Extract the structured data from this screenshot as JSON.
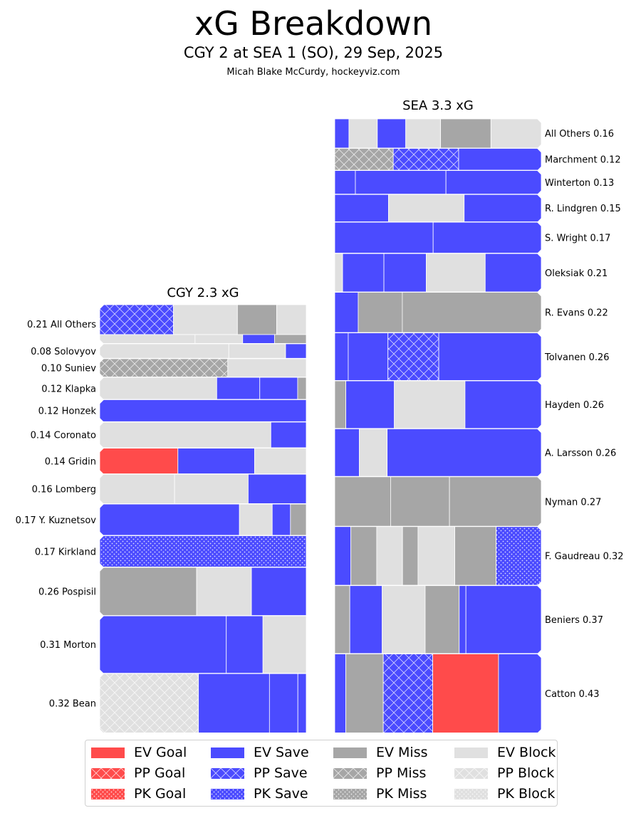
{
  "header": {
    "title": "xG Breakdown",
    "subtitle": "CGY 2 at SEA 1 (SO), 29 Sep, 2025",
    "credit": "Micah Blake McCurdy, hockeyviz.com"
  },
  "colors": {
    "goal": "#ff4b4b",
    "save": "#4b4bff",
    "miss": "#a6a6a6",
    "block": "#e0e0e0",
    "bg": "#ffffff"
  },
  "legend": [
    {
      "label": "EV Goal",
      "type": "goal",
      "state": "EV"
    },
    {
      "label": "PP Goal",
      "type": "goal",
      "state": "PP"
    },
    {
      "label": "PK Goal",
      "type": "goal",
      "state": "PK"
    },
    {
      "label": "EV Save",
      "type": "save",
      "state": "EV"
    },
    {
      "label": "PP Save",
      "type": "save",
      "state": "PP"
    },
    {
      "label": "PK Save",
      "type": "save",
      "state": "PK"
    },
    {
      "label": "EV Miss",
      "type": "miss",
      "state": "EV"
    },
    {
      "label": "PP Miss",
      "type": "miss",
      "state": "PP"
    },
    {
      "label": "PK Miss",
      "type": "miss",
      "state": "PK"
    },
    {
      "label": "EV Block",
      "type": "block",
      "state": "EV"
    },
    {
      "label": "PP Block",
      "type": "block",
      "state": "PP"
    },
    {
      "label": "PK Block",
      "type": "block",
      "state": "PK"
    }
  ],
  "chart_data": {
    "type": "treemap",
    "title": "xG Breakdown",
    "teams": [
      {
        "name": "CGY 2.3 xG",
        "team": "CGY",
        "total_xg": 2.3,
        "label_side": "left",
        "players": [
          {
            "label": "0.21 All Others",
            "name": "All Others",
            "xg": 0.21,
            "rows": [
              [
                [
                  0.075,
                  "save",
                  "PP"
                ],
                [
                  0.065,
                  "block",
                  "EV"
                ],
                [
                  0.04,
                  "miss",
                  "EV"
                ],
                [
                  0.03,
                  "block",
                  "EV"
                ]
              ],
              [
                [
                  0.03,
                  "block",
                  "EV"
                ],
                [
                  0.015,
                  "block",
                  "EV"
                ],
                [
                  0.01,
                  "save",
                  "EV"
                ],
                [
                  0.01,
                  "miss",
                  "EV"
                ]
              ]
            ]
          },
          {
            "label": "0.08 Solovyov",
            "name": "Solovyov",
            "xg": 0.08,
            "rows": [
              [
                [
                  0.05,
                  "block",
                  "EV"
                ],
                [
                  0.022,
                  "block",
                  "EV"
                ],
                [
                  0.008,
                  "save",
                  "EV"
                ]
              ]
            ]
          },
          {
            "label": "0.10 Suniev",
            "name": "Suniev",
            "xg": 0.1,
            "rows": [
              [
                [
                  0.062,
                  "miss",
                  "PP"
                ],
                [
                  0.038,
                  "block",
                  "EV"
                ]
              ]
            ]
          },
          {
            "label": "0.12 Klapka",
            "name": "Klapka",
            "xg": 0.12,
            "rows": [
              [
                [
                  0.068,
                  "block",
                  "EV"
                ],
                [
                  0.025,
                  "save",
                  "EV"
                ],
                [
                  0.022,
                  "save",
                  "EV"
                ],
                [
                  0.005,
                  "miss",
                  "EV"
                ]
              ]
            ]
          },
          {
            "label": "0.12 Honzek",
            "name": "Honzek",
            "xg": 0.12,
            "rows": [
              [
                [
                  0.12,
                  "save",
                  "EV"
                ]
              ]
            ]
          },
          {
            "label": "0.14 Coronato",
            "name": "Coronato",
            "xg": 0.14,
            "rows": [
              [
                [
                  0.116,
                  "block",
                  "EV"
                ],
                [
                  0.024,
                  "save",
                  "EV"
                ]
              ]
            ]
          },
          {
            "label": "0.14 Gridin",
            "name": "Gridin",
            "xg": 0.14,
            "rows": [
              [
                [
                  0.053,
                  "goal",
                  "EV"
                ],
                [
                  0.052,
                  "save",
                  "EV"
                ],
                [
                  0.035,
                  "block",
                  "EV"
                ]
              ]
            ]
          },
          {
            "label": "0.16 Lomberg",
            "name": "Lomberg",
            "xg": 0.16,
            "rows": [
              [
                [
                  0.058,
                  "block",
                  "EV"
                ],
                [
                  0.057,
                  "block",
                  "EV"
                ],
                [
                  0.045,
                  "save",
                  "EV"
                ]
              ]
            ]
          },
          {
            "label": "0.17 Y. Kuznetsov",
            "name": "Y. Kuznetsov",
            "xg": 0.17,
            "rows": [
              [
                [
                  0.115,
                  "save",
                  "EV"
                ],
                [
                  0.027,
                  "block",
                  "EV"
                ],
                [
                  0.015,
                  "save",
                  "EV"
                ],
                [
                  0.013,
                  "miss",
                  "EV"
                ]
              ]
            ]
          },
          {
            "label": "0.17 Kirkland",
            "name": "Kirkland",
            "xg": 0.17,
            "rows": [
              [
                [
                  0.17,
                  "save",
                  "PK"
                ]
              ]
            ]
          },
          {
            "label": "0.26 Pospisil",
            "name": "Pospisil",
            "xg": 0.26,
            "rows": [
              [
                [
                  0.122,
                  "miss",
                  "EV"
                ],
                [
                  0.069,
                  "block",
                  "EV"
                ],
                [
                  0.069,
                  "save",
                  "EV"
                ]
              ]
            ]
          },
          {
            "label": "0.31 Morton",
            "name": "Morton",
            "xg": 0.31,
            "rows": [
              [
                [
                  0.19,
                  "save",
                  "EV"
                ],
                [
                  0.055,
                  "save",
                  "EV"
                ],
                [
                  0.065,
                  "block",
                  "EV"
                ]
              ]
            ]
          },
          {
            "label": "0.32 Bean",
            "name": "Bean",
            "xg": 0.32,
            "rows": [
              [
                [
                  0.153,
                  "block",
                  "PP"
                ],
                [
                  0.11,
                  "save",
                  "EV"
                ],
                [
                  0.044,
                  "save",
                  "EV"
                ],
                [
                  0.013,
                  "save",
                  "EV"
                ]
              ]
            ]
          }
        ]
      },
      {
        "name": "SEA 3.3 xG",
        "team": "SEA",
        "total_xg": 3.3,
        "label_side": "right",
        "players": [
          {
            "label": "All Others 0.16",
            "name": "All Others",
            "xg": 0.16,
            "rows": [
              [
                [
                  0.011,
                  "save",
                  "EV"
                ],
                [
                  0.022,
                  "block",
                  "EV"
                ],
                [
                  0.022,
                  "save",
                  "EV"
                ],
                [
                  0.027,
                  "block",
                  "EV"
                ],
                [
                  0.039,
                  "miss",
                  "EV"
                ],
                [
                  0.039,
                  "block",
                  "EV"
                ]
              ]
            ]
          },
          {
            "label": "Marchment 0.12",
            "name": "Marchment",
            "xg": 0.12,
            "rows": [
              [
                [
                  0.034,
                  "miss",
                  "PP"
                ],
                [
                  0.038,
                  "save",
                  "PP"
                ],
                [
                  0.048,
                  "save",
                  "EV"
                ]
              ]
            ]
          },
          {
            "label": "Winterton 0.13",
            "name": "Winterton",
            "xg": 0.13,
            "rows": [
              [
                [
                  0.013,
                  "save",
                  "EV"
                ],
                [
                  0.057,
                  "save",
                  "EV"
                ],
                [
                  0.06,
                  "save",
                  "EV"
                ]
              ]
            ]
          },
          {
            "label": "R. Lindgren 0.15",
            "name": "R. Lindgren",
            "xg": 0.15,
            "rows": [
              [
                [
                  0.039,
                  "save",
                  "EV"
                ],
                [
                  0.055,
                  "block",
                  "EV"
                ],
                [
                  0.056,
                  "save",
                  "EV"
                ]
              ]
            ]
          },
          {
            "label": "S. Wright 0.17",
            "name": "S. Wright",
            "xg": 0.17,
            "rows": [
              [
                [
                  0.081,
                  "save",
                  "EV"
                ],
                [
                  0.089,
                  "save",
                  "EV"
                ]
              ]
            ]
          },
          {
            "label": "Oleksiak 0.21",
            "name": "Oleksiak",
            "xg": 0.21,
            "rows": [
              [
                [
                  0.008,
                  "block",
                  "EV"
                ],
                [
                  0.042,
                  "save",
                  "EV"
                ],
                [
                  0.043,
                  "save",
                  "EV"
                ],
                [
                  0.06,
                  "block",
                  "EV"
                ],
                [
                  0.057,
                  "save",
                  "EV"
                ]
              ]
            ]
          },
          {
            "label": "R. Evans 0.22",
            "name": "R. Evans",
            "xg": 0.22,
            "rows": [
              [
                [
                  0.025,
                  "save",
                  "EV"
                ],
                [
                  0.047,
                  "miss",
                  "EV"
                ],
                [
                  0.148,
                  "miss",
                  "EV"
                ]
              ]
            ]
          },
          {
            "label": "Tolvanen 0.26",
            "name": "Tolvanen",
            "xg": 0.26,
            "rows": [
              [
                [
                  0.017,
                  "save",
                  "EV"
                ],
                [
                  0.05,
                  "save",
                  "EV"
                ],
                [
                  0.064,
                  "save",
                  "PP"
                ],
                [
                  0.129,
                  "save",
                  "EV"
                ]
              ]
            ]
          },
          {
            "label": "Hayden 0.26",
            "name": "Hayden",
            "xg": 0.26,
            "rows": [
              [
                [
                  0.014,
                  "miss",
                  "EV"
                ],
                [
                  0.061,
                  "save",
                  "EV"
                ],
                [
                  0.089,
                  "block",
                  "EV"
                ],
                [
                  0.096,
                  "save",
                  "EV"
                ]
              ]
            ]
          },
          {
            "label": "A. Larsson 0.26",
            "name": "A. Larsson",
            "xg": 0.26,
            "rows": [
              [
                [
                  0.031,
                  "save",
                  "EV"
                ],
                [
                  0.035,
                  "block",
                  "EV"
                ],
                [
                  0.194,
                  "save",
                  "EV"
                ]
              ]
            ]
          },
          {
            "label": "Nyman 0.27",
            "name": "Nyman",
            "xg": 0.27,
            "rows": [
              [
                [
                  0.073,
                  "miss",
                  "EV"
                ],
                [
                  0.077,
                  "miss",
                  "EV"
                ],
                [
                  0.12,
                  "miss",
                  "EV"
                ]
              ]
            ]
          },
          {
            "label": "F. Gaudreau 0.32",
            "name": "F. Gaudreau",
            "xg": 0.32,
            "rows": [
              [
                [
                  0.025,
                  "save",
                  "EV"
                ],
                [
                  0.04,
                  "miss",
                  "EV"
                ],
                [
                  0.04,
                  "block",
                  "EV"
                ],
                [
                  0.024,
                  "miss",
                  "EV"
                ],
                [
                  0.057,
                  "block",
                  "EV"
                ],
                [
                  0.064,
                  "miss",
                  "EV"
                ],
                [
                  0.07,
                  "save",
                  "PK"
                ]
              ]
            ]
          },
          {
            "label": "Beniers 0.37",
            "name": "Beniers",
            "xg": 0.37,
            "rows": [
              [
                [
                  0.027,
                  "miss",
                  "EV"
                ],
                [
                  0.058,
                  "save",
                  "EV"
                ],
                [
                  0.077,
                  "block",
                  "EV"
                ],
                [
                  0.061,
                  "miss",
                  "EV"
                ],
                [
                  0.012,
                  "save",
                  "EV"
                ],
                [
                  0.135,
                  "save",
                  "EV"
                ]
              ]
            ]
          },
          {
            "label": "Catton 0.43",
            "name": "Catton",
            "xg": 0.43,
            "rows": [
              [
                [
                  0.023,
                  "save",
                  "EV"
                ],
                [
                  0.078,
                  "miss",
                  "EV"
                ],
                [
                  0.103,
                  "save",
                  "PP"
                ],
                [
                  0.137,
                  "goal",
                  "EV"
                ],
                [
                  0.089,
                  "save",
                  "EV"
                ]
              ]
            ]
          }
        ]
      }
    ],
    "segment_format": "[xg, outcome, strength]"
  }
}
